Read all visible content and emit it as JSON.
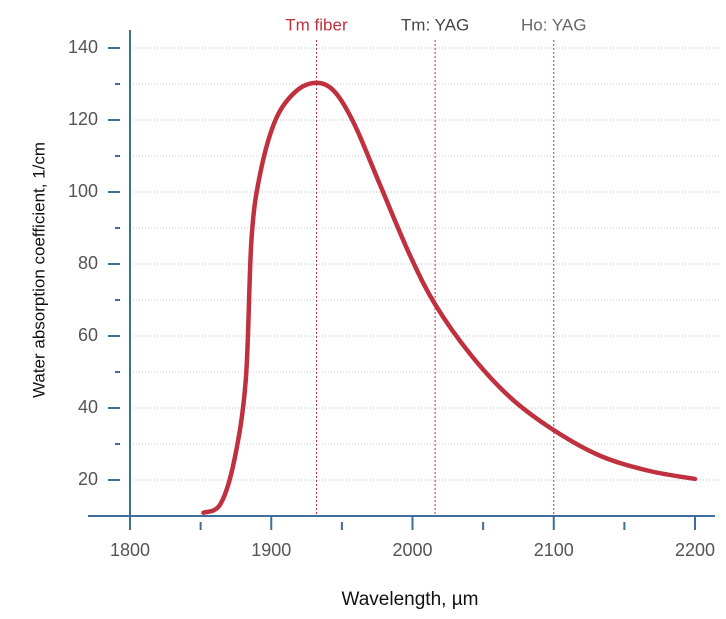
{
  "chart_data": {
    "type": "line",
    "xlabel": "Wavelength, µm",
    "ylabel": "Water absorption coefficient, 1/cm",
    "x": [
      1852,
      1864,
      1874,
      1882,
      1886,
      1892,
      1903,
      1917,
      1932,
      1945,
      1959,
      1977,
      1998,
      2016,
      2041,
      2069,
      2099,
      2133,
      2168,
      2200
    ],
    "series": [
      {
        "color": "#c0313f",
        "values": [
          10.9,
          13.3,
          25.8,
          48,
          86.8,
          104.8,
          120,
          127.8,
          130.3,
          127.8,
          118.7,
          102,
          82.6,
          68.8,
          54.9,
          43,
          34.1,
          26.7,
          22.5,
          20.3
        ]
      }
    ],
    "xlim": [
      1800,
      2200
    ],
    "xticks": [
      1800,
      1900,
      2000,
      2100,
      2200
    ],
    "xminor": [
      1850,
      1950,
      2050,
      2150
    ],
    "ylim": [
      10,
      145
    ],
    "yticks": [
      20,
      40,
      60,
      80,
      100,
      120,
      140
    ],
    "yminor": [
      30,
      50,
      70,
      90,
      110,
      130
    ],
    "grid": true,
    "annotations": [
      {
        "text": "Tm fiber",
        "x": 1932,
        "color": "#c0313f"
      },
      {
        "text": "Tm: YAG",
        "x": 2016,
        "color": "#444444"
      },
      {
        "text": "Ho: YAG",
        "x": 2100,
        "color": "#666666"
      }
    ]
  }
}
